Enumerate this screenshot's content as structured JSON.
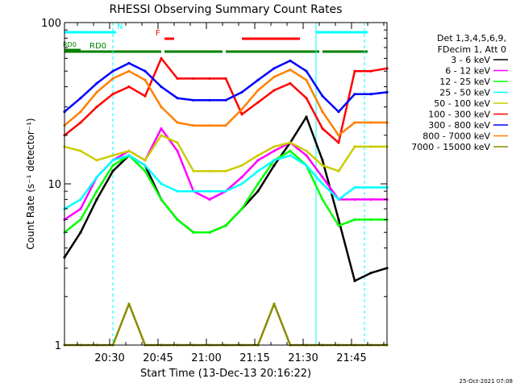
{
  "chart_data": {
    "type": "line",
    "title": "RHESSI Observing Summary Count Rates",
    "xlabel": "Start Time (13-Dec-13 20:16:22)",
    "ylabel": "Count Rate (s⁻¹ detector⁻¹)",
    "yscale": "log",
    "ylim": [
      1,
      100
    ],
    "x_minutes_range": [
      0,
      100
    ],
    "x_tick_labels": [
      "20:30",
      "20:45",
      "21:00",
      "21:15",
      "21:30",
      "21:45"
    ],
    "x_tick_minutes": [
      14,
      29,
      44,
      59,
      74,
      89
    ],
    "y_tick_labels": [
      "1",
      "10",
      "100"
    ],
    "y_tick_values": [
      1,
      10,
      100
    ],
    "timestamp": "25-Oct-2021 07:08",
    "legend": {
      "header": [
        "Det 1,3,4,5,6,9,",
        "FDecim 1, Att 0"
      ],
      "placement": "right"
    },
    "flags": [
      {
        "label": "N",
        "color": "#00ffff",
        "segments": [
          [
            0,
            16
          ],
          [
            78,
            94
          ]
        ]
      },
      {
        "label": "F",
        "color": "#ff0000",
        "segments": [
          [
            31,
            34
          ],
          [
            55,
            73
          ]
        ]
      },
      {
        "label": "RD0",
        "color": "#008000",
        "segments": [
          [
            0,
            30
          ],
          [
            31,
            49
          ],
          [
            50,
            79
          ],
          [
            80,
            94
          ]
        ]
      },
      {
        "label": "RD0",
        "color": "#008000",
        "segments": [
          [
            0,
            5
          ]
        ]
      }
    ],
    "flag_vlines": [
      {
        "color": "#00ffff",
        "style": "solid",
        "minutes": [
          0,
          78
        ]
      },
      {
        "color": "#00ffff",
        "style": "dashed",
        "minutes": [
          15,
          93
        ]
      }
    ],
    "series": [
      {
        "name": "3 - 6 keV",
        "color": "#000000",
        "values": [
          3.5,
          5,
          8,
          12,
          15,
          13,
          8,
          6,
          5,
          5,
          5.5,
          7,
          9,
          13,
          18,
          26,
          14,
          6,
          2.5,
          2.8,
          3
        ]
      },
      {
        "name": "6 - 12 keV",
        "color": "#ff00ff",
        "values": [
          6,
          7,
          11,
          14,
          16,
          14,
          22,
          16,
          9,
          8,
          9,
          11,
          14,
          16,
          18,
          15,
          11,
          8,
          8,
          8,
          8
        ]
      },
      {
        "name": "12 - 25 keV",
        "color": "#00ff00",
        "values": [
          5,
          6,
          9,
          13,
          15,
          12,
          8,
          6,
          5,
          5,
          5.5,
          7,
          10,
          14,
          16,
          13,
          8,
          5.5,
          6,
          6,
          6
        ]
      },
      {
        "name": "25 - 50 keV",
        "color": "#00ffff",
        "values": [
          7,
          8,
          11,
          14,
          15,
          13,
          10,
          9,
          9,
          9,
          9,
          10,
          12,
          14,
          15,
          13,
          10,
          8,
          9.5,
          9.5,
          9.5
        ]
      },
      {
        "name": "50 - 100 keV",
        "color": "#cccc00",
        "values": [
          17,
          16,
          14,
          15,
          16,
          14,
          20,
          18,
          12,
          12,
          12,
          13,
          15,
          17,
          18,
          16,
          13,
          12,
          17,
          17,
          17
        ]
      },
      {
        "name": "100 - 300 keV",
        "color": "#ff0000",
        "values": [
          20,
          24,
          30,
          36,
          40,
          35,
          60,
          45,
          45,
          45,
          45,
          27,
          32,
          38,
          42,
          34,
          22,
          18,
          50,
          50,
          52
        ]
      },
      {
        "name": "300 - 800 keV",
        "color": "#0000ff",
        "values": [
          28,
          34,
          42,
          50,
          56,
          50,
          40,
          34,
          33,
          33,
          33,
          37,
          44,
          52,
          58,
          50,
          35,
          28,
          36,
          36,
          37
        ]
      },
      {
        "name": "800 - 7000 keV",
        "color": "#ff8000",
        "values": [
          23,
          28,
          37,
          45,
          50,
          44,
          30,
          24,
          23,
          23,
          23,
          29,
          38,
          46,
          51,
          44,
          28,
          20,
          24,
          24,
          24
        ]
      },
      {
        "name": "7000 - 15000 keV",
        "color": "#8b8b00",
        "values": [
          1,
          1,
          1,
          1,
          1.8,
          1,
          1,
          1,
          1,
          1,
          1,
          1,
          1,
          1.8,
          1,
          1,
          1,
          1,
          1,
          1,
          1
        ]
      }
    ]
  }
}
